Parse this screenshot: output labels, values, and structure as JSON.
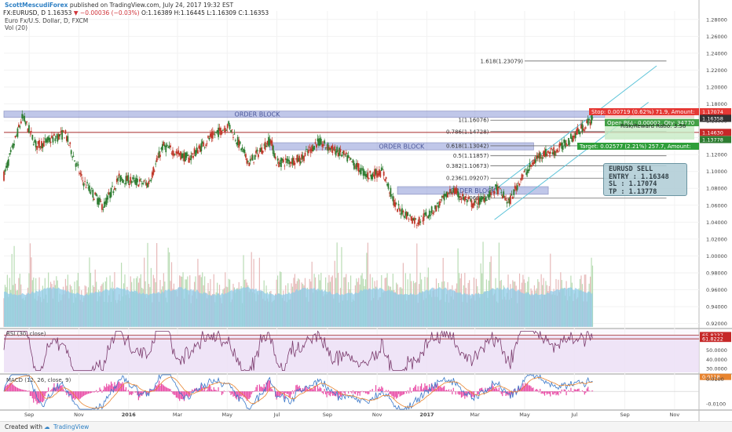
{
  "header": {
    "author": "ScottMescudiForex",
    "published": "published on TradingView.com, July 24, 2017 19:32 EST",
    "symbol_line_prefix": "FX:EURUSD, D  1.16353",
    "symbol_change": "▼ −0.00036 (−0.03%)",
    "symbol_ohlc": "O:1.16389 H:1.16445 L:1.16309 C:1.16353",
    "instrument": "Euro Fx/U.S. Dollar, D, FXCM",
    "volume_label": "Vol (20)"
  },
  "footer": {
    "created_with": "Created with",
    "brand": "TradingView"
  },
  "colors": {
    "up": "#2e7d32",
    "down": "#c0392b",
    "order_block": "#8e9ad8",
    "fib_line": "#6b6b6b",
    "channel": "#5ec4d9",
    "volume_ma": "#8fcbe8",
    "rsi_fill": "#ecdff5",
    "rsi_line": "#7a3a6c",
    "macd_line": "#3a78c9",
    "signal_line": "#e8842f",
    "histogram": "#e94aa5",
    "stop_zone": "#f5c6c6",
    "target_zone": "#c7ebc4"
  },
  "annotations": {
    "order_blocks": [
      {
        "label": "ORDER BLOCK",
        "top": 1.1715,
        "bottom": 1.164,
        "x_start": "2015-08-01",
        "x_end": "2017-07-10"
      },
      {
        "label": "ORDER BLOCK",
        "top": 1.134,
        "bottom": 1.1255,
        "x_start": "2016-06-22",
        "x_end": "2017-05-12"
      },
      {
        "label": "ORDER BLOCK",
        "top": 1.082,
        "bottom": 1.073,
        "x_start": "2016-11-26",
        "x_end": "2017-05-30"
      }
    ],
    "fib_levels": [
      {
        "label": "1.618(1.23079)",
        "price": 1.23079
      },
      {
        "label": "1(1.16076)",
        "price": 1.16076
      },
      {
        "label": "0.786(1.14728)",
        "price": 1.14728
      },
      {
        "label": "0.618(1.13042)",
        "price": 1.13042
      },
      {
        "label": "0.5(1.11857)",
        "price": 1.11857
      },
      {
        "label": "0.382(1.10673)",
        "price": 1.10673
      },
      {
        "label": "0.236(1.09207)",
        "price": 1.09207
      },
      {
        "label": "0(1.06839)",
        "price": 1.06839
      }
    ],
    "resistance_line_price": 1.1463,
    "stop_label": "Stop: 0.00719 (0.62%) 71.9, Amount:",
    "open_label": "Open P&L: 0.00002, Qty: 34770",
    "risk_reward_label": "Risk/Reward Ratio: 3.58",
    "target_label": "Target: 0.02577 (2.21%) 257.7, Amount:",
    "signal": {
      "title": "EURUSD SELL",
      "entry": "ENTRY : 1.16348",
      "sl": "SL : 1.17074",
      "tp": "TP : 1.13778"
    }
  },
  "chart_data": [
    {
      "type": "candlestick",
      "title": "FX:EURUSD, D",
      "x_tick_labels": [
        "Sep",
        "Nov",
        "2016",
        "Mar",
        "May",
        "Jul",
        "Sep",
        "Nov",
        "2017",
        "Mar",
        "May",
        "Jul",
        "Sep",
        "Nov"
      ],
      "y_tick_labels": [
        "1.28000",
        "1.26000",
        "1.24000",
        "1.22000",
        "1.20000",
        "1.18000",
        "1.16000",
        "1.14000",
        "1.12000",
        "1.10000",
        "1.08000",
        "1.06000",
        "1.04000",
        "1.02000",
        "1.00000",
        "0.98000",
        "0.96000",
        "0.94000",
        "0.92000"
      ],
      "ylim": [
        0.915,
        1.29
      ],
      "price_labels": [
        {
          "text": "1.17074",
          "price": 1.17074,
          "color": "#e53935"
        },
        {
          "text": "1.16353",
          "price": 1.16353,
          "color": "#c62828"
        },
        {
          "text": "1.16358",
          "price": 1.1628,
          "color": "#333333"
        },
        {
          "text": "1.14630",
          "price": 1.1463,
          "color": "#c62828"
        },
        {
          "text": "1.13778",
          "price": 1.13778,
          "color": "#2e7d32"
        }
      ],
      "close_series_anchors": [
        [
          "2015-08-01",
          1.095
        ],
        [
          "2015-08-24",
          1.165
        ],
        [
          "2015-09-10",
          1.13
        ],
        [
          "2015-10-15",
          1.145
        ],
        [
          "2015-11-05",
          1.09
        ],
        [
          "2015-12-01",
          1.058
        ],
        [
          "2015-12-20",
          1.092
        ],
        [
          "2016-01-25",
          1.085
        ],
        [
          "2016-02-12",
          1.13
        ],
        [
          "2016-03-15",
          1.115
        ],
        [
          "2016-04-10",
          1.14
        ],
        [
          "2016-05-03",
          1.155
        ],
        [
          "2016-05-28",
          1.11
        ],
        [
          "2016-06-23",
          1.138
        ],
        [
          "2016-07-01",
          1.11
        ],
        [
          "2016-07-31",
          1.115
        ],
        [
          "2016-08-20",
          1.135
        ],
        [
          "2016-09-20",
          1.12
        ],
        [
          "2016-10-20",
          1.095
        ],
        [
          "2016-11-08",
          1.1
        ],
        [
          "2016-11-24",
          1.058
        ],
        [
          "2016-12-20",
          1.04
        ],
        [
          "2017-01-10",
          1.055
        ],
        [
          "2017-02-01",
          1.078
        ],
        [
          "2017-02-28",
          1.06
        ],
        [
          "2017-03-28",
          1.08
        ],
        [
          "2017-04-12",
          1.063
        ],
        [
          "2017-04-25",
          1.09
        ],
        [
          "2017-05-20",
          1.12
        ],
        [
          "2017-06-10",
          1.125
        ],
        [
          "2017-06-28",
          1.14
        ],
        [
          "2017-07-24",
          1.16353
        ]
      ],
      "volume_ma_level": 0.958
    },
    {
      "type": "line",
      "title": "RSI (30, close)",
      "value_labels": [
        "65.8237",
        "61.8222"
      ],
      "y_tick_labels": [
        "50.0000",
        "40.0000",
        "30.0000"
      ],
      "ylim": [
        26,
        72
      ],
      "levels": [
        65.8237,
        61.8222
      ]
    },
    {
      "type": "line",
      "title": "MACD (12, 26, close, 9)",
      "value_labels": [
        "0.0118"
      ],
      "y_tick_labels": [
        "0.0118",
        "0.0100",
        "-0.0100"
      ],
      "ylim": [
        -0.0145,
        0.0135
      ],
      "series": [
        {
          "name": "MACD",
          "color": "#3a78c9"
        },
        {
          "name": "Signal",
          "color": "#e8842f"
        },
        {
          "name": "Histogram",
          "color": "#e94aa5"
        }
      ]
    }
  ]
}
